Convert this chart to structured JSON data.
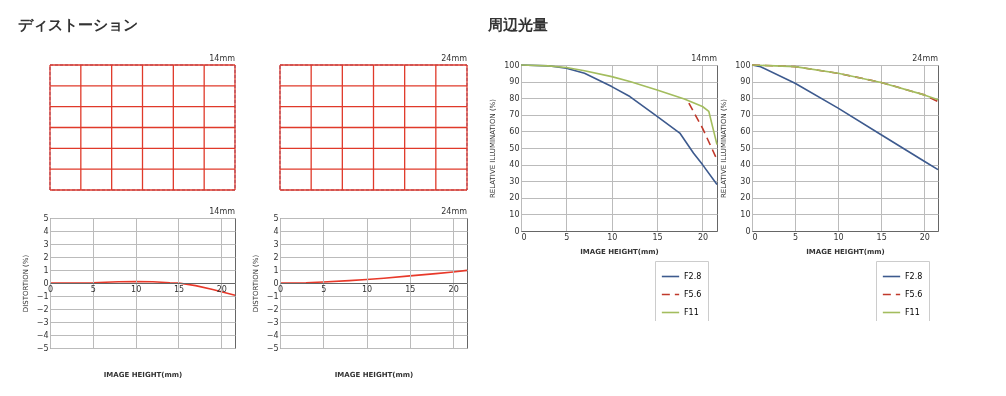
{
  "chart_data": [
    {
      "type": "line",
      "title": "ディストーション",
      "subtitle": "14mm",
      "xlabel": "IMAGE HEIGHT(mm)",
      "ylabel": "DISTORTION (%)",
      "xlim": [
        0,
        21.6
      ],
      "xticks": [
        0,
        5,
        10,
        15,
        20
      ],
      "ylim": [
        -5,
        5
      ],
      "yticks": [
        -5,
        -4,
        -3,
        -2,
        -1,
        0,
        1,
        2,
        3,
        4,
        5
      ],
      "grid": true,
      "series": [
        {
          "color": "#e8392a",
          "x": [
            0,
            5,
            8,
            10,
            12,
            14,
            15,
            17,
            19,
            21.6
          ],
          "values": [
            0,
            0.02,
            0.1,
            0.12,
            0.1,
            0.02,
            0,
            -0.2,
            -0.5,
            -0.95
          ]
        }
      ]
    },
    {
      "type": "line",
      "subtitle": "24mm",
      "xlabel": "IMAGE HEIGHT(mm)",
      "ylabel": "DISTORTION (%)",
      "xlim": [
        0,
        21.6
      ],
      "xticks": [
        0,
        5,
        10,
        15,
        20
      ],
      "ylim": [
        -5,
        5
      ],
      "yticks": [
        -5,
        -4,
        -3,
        -2,
        -1,
        0,
        1,
        2,
        3,
        4,
        5
      ],
      "grid": true,
      "series": [
        {
          "color": "#e8392a",
          "x": [
            0,
            3,
            5,
            8,
            10,
            12,
            15,
            18,
            20,
            21.6
          ],
          "values": [
            0,
            0.02,
            0.08,
            0.18,
            0.27,
            0.37,
            0.55,
            0.72,
            0.85,
            0.97
          ]
        }
      ]
    },
    {
      "type": "line",
      "title": "周辺光量",
      "subtitle": "14mm",
      "xlabel": "IMAGE HEIGHT(mm)",
      "ylabel": "RELATIVE ILLUMINATION (%)",
      "xlim": [
        0,
        21.6
      ],
      "xticks": [
        0,
        5,
        10,
        15,
        20
      ],
      "ylim": [
        0,
        100
      ],
      "yticks": [
        0,
        10,
        20,
        30,
        40,
        50,
        60,
        70,
        80,
        90,
        100
      ],
      "grid": true,
      "legend": "bottom right",
      "series": [
        {
          "name": "F2.8",
          "color": "#3d5a8e",
          "line_style": "solid",
          "x": [
            0,
            3,
            5,
            7,
            10,
            12,
            15,
            17.5,
            19,
            20,
            21.6
          ],
          "values": [
            100,
            99.5,
            98,
            95,
            87,
            81,
            69,
            59,
            47,
            40,
            28
          ]
        },
        {
          "name": "F5.6",
          "color": "#c0392b",
          "line_style": "dashed",
          "x": [
            18.5,
            20,
            21.6
          ],
          "values": [
            77,
            62,
            43
          ]
        },
        {
          "name": "F11",
          "color": "#a3bd5e",
          "line_style": "solid",
          "x": [
            0,
            3,
            5,
            7,
            10,
            12,
            15,
            18,
            20,
            20.7,
            21.6
          ],
          "values": [
            100,
            99.5,
            98.5,
            96.5,
            93,
            90,
            85,
            79.5,
            75,
            72,
            52
          ]
        }
      ]
    },
    {
      "type": "line",
      "subtitle": "24mm",
      "xlabel": "IMAGE HEIGHT(mm)",
      "ylabel": "RELATIVE ILLUMINATION (%)",
      "xlim": [
        0,
        21.6
      ],
      "xticks": [
        0,
        5,
        10,
        15,
        20
      ],
      "ylim": [
        0,
        100
      ],
      "yticks": [
        0,
        10,
        20,
        30,
        40,
        50,
        60,
        70,
        80,
        90,
        100
      ],
      "grid": true,
      "legend": "bottom right",
      "series": [
        {
          "name": "F2.8",
          "color": "#3d5a8e",
          "line_style": "solid",
          "x": [
            0,
            1,
            5,
            10,
            15,
            20,
            21.6
          ],
          "values": [
            100,
            99,
            89,
            74,
            58,
            42,
            37
          ]
        },
        {
          "name": "F5.6",
          "color": "#c0392b",
          "line_style": "dashed",
          "x": [
            0,
            5,
            10,
            15,
            20,
            21.6
          ],
          "values": [
            100,
            99,
            95,
            89.5,
            82,
            78
          ]
        },
        {
          "name": "F11",
          "color": "#a3bd5e",
          "line_style": "solid",
          "x": [
            0,
            5,
            10,
            15,
            20,
            21.6
          ],
          "values": [
            100,
            99,
            95,
            89.5,
            82,
            79
          ]
        }
      ]
    }
  ]
}
